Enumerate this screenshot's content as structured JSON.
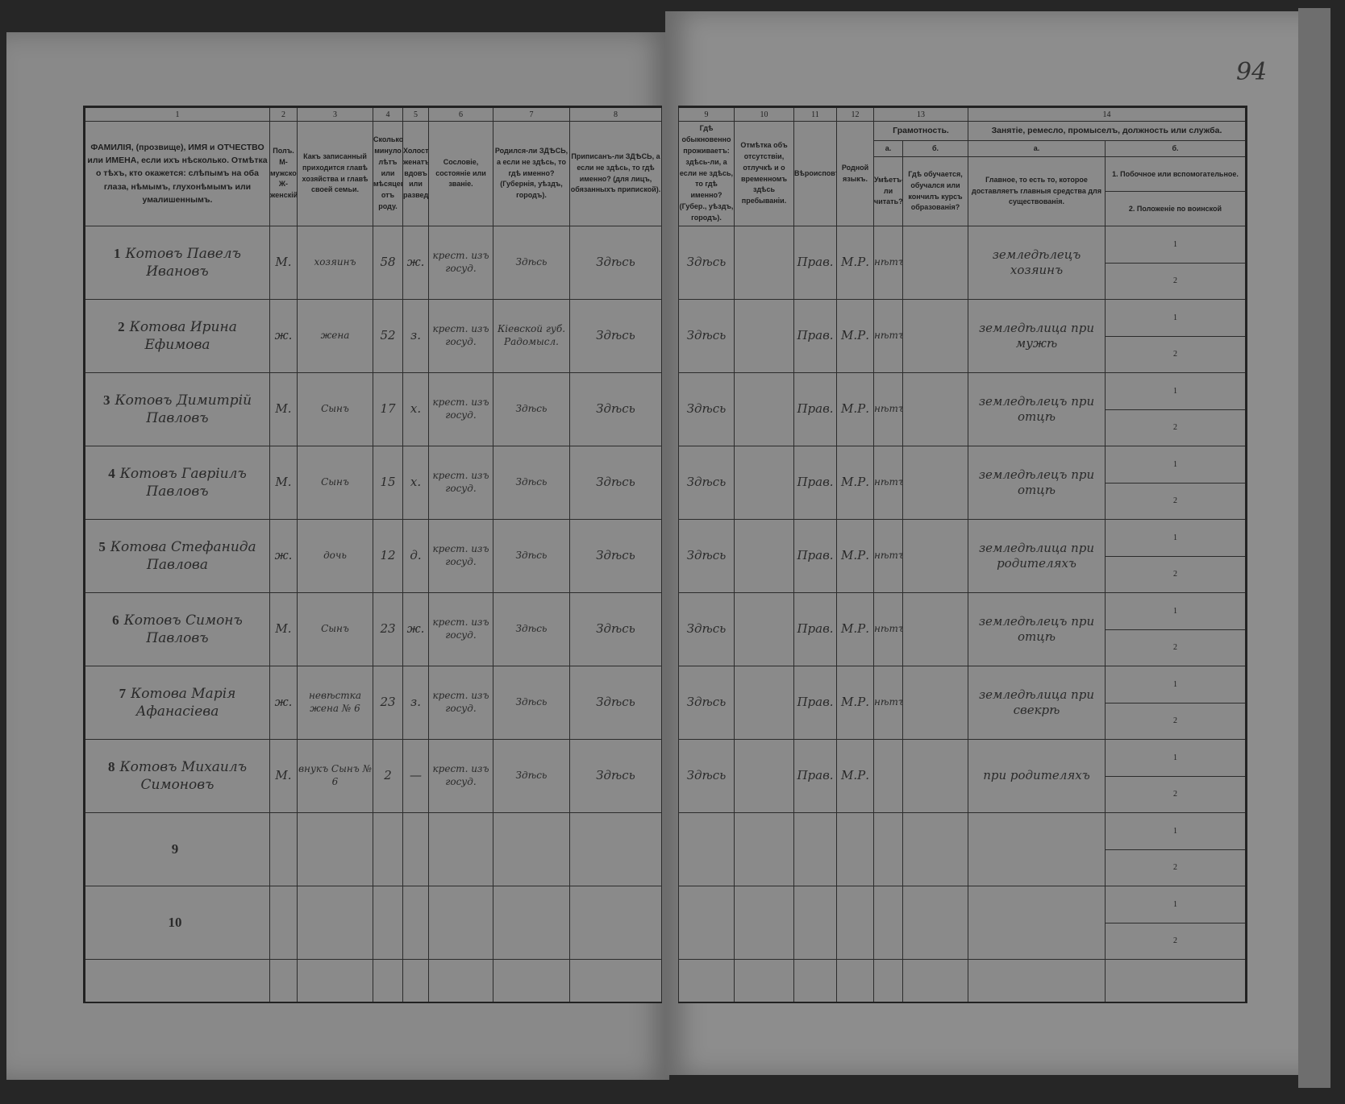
{
  "page_number": "94",
  "columns_left": [
    {
      "num": "1",
      "header": "ФАМИЛІЯ, (прозвище), ИМЯ и ОТЧЕСТВО или ИМЕНА, если ихъ нѣсколько. Отмѣтка о тѣхъ, кто окажется: слѣпымъ на оба глаза, нѣмымъ, глухонѣмымъ или умалишеннымъ."
    },
    {
      "num": "2",
      "header": "Полъ. М-мужской. Ж-женскій."
    },
    {
      "num": "3",
      "header": "Какъ записанный приходится главѣ хозяйства и главѣ своей семьи."
    },
    {
      "num": "4",
      "header": "Сколько минуло лѣтъ или мѣсяцевъ отъ роду."
    },
    {
      "num": "5",
      "header": "Холостъ, женатъ, вдовъ или разведенъ."
    },
    {
      "num": "6",
      "header": "Сословіе, состояніе или званіе."
    },
    {
      "num": "7",
      "header": "Родился-ли ЗДѢСЬ, а если не здѣсь, то гдѣ именно? (Губернія, уѣздъ, городъ)."
    },
    {
      "num": "8",
      "header": "Приписанъ-ли ЗДѢСЬ, а если не здѣсь, то гдѣ именно? (для лицъ, обязанныхъ припиской)."
    }
  ],
  "columns_right": {
    "c9": {
      "num": "9",
      "header": "Гдѣ обыкновенно проживаетъ: здѣсь-ли, а если не здѣсь, то гдѣ именно? (Губер., уѣздъ, городъ)."
    },
    "c10": {
      "num": "10",
      "header": "Отмѣтка объ отсутствіи, отлучкѣ и о временномъ здѣсь пребываніи."
    },
    "c11": {
      "num": "11",
      "header": "Вѣроисповѣданіе."
    },
    "c12": {
      "num": "12",
      "header": "Родной языкъ."
    },
    "c13": {
      "num": "13",
      "group": "Грамотность.",
      "a_label": "а.",
      "a_header": "Умѣетъ-ли читать?",
      "b_label": "б.",
      "b_header": "Гдѣ обучается, обучался или кончилъ курсъ образованія?"
    },
    "c14": {
      "num": "14",
      "group": "Занятіе, ремесло, промыселъ, должность или служба.",
      "a_label": "а.",
      "a_header": "Главное, то есть то, которое доставляетъ главныя средства для существованія.",
      "b_label": "б.",
      "b_header_1": "1. Побочное или вспомогательное.",
      "b_header_2": "2. Положеніе по воинской повинности."
    }
  },
  "subrow_labels": [
    "1",
    "2"
  ],
  "rows": [
    {
      "n": "1",
      "name": "Котовъ Павелъ Ивановъ",
      "sex": "М.",
      "relation": "хозяинъ",
      "age": "58",
      "marital": "ж.",
      "estate": "крест. изъ госуд.",
      "born": "Здѣсь",
      "registered": "Здѣсь",
      "residence": "Здѣсь",
      "absence": "",
      "religion": "Прав.",
      "language": "М.Р.",
      "literate": "нѣтъ",
      "school": "",
      "occupation": "земледѣлецъ хозяинъ"
    },
    {
      "n": "2",
      "name": "Котова Ирина Ефимова",
      "sex": "ж.",
      "relation": "жена",
      "age": "52",
      "marital": "з.",
      "estate": "крест. изъ госуд.",
      "born": "Кіевской губ. Радомысл.",
      "registered": "Здѣсь",
      "residence": "Здѣсь",
      "absence": "",
      "religion": "Прав.",
      "language": "М.Р.",
      "literate": "нѣтъ",
      "school": "",
      "occupation": "земледѣлица при мужѣ"
    },
    {
      "n": "3",
      "name": "Котовъ Димитрій Павловъ",
      "sex": "М.",
      "relation": "Сынъ",
      "age": "17",
      "marital": "х.",
      "estate": "крест. изъ госуд.",
      "born": "Здѣсь",
      "registered": "Здѣсь",
      "residence": "Здѣсь",
      "absence": "",
      "religion": "Прав.",
      "language": "М.Р.",
      "literate": "нѣтъ",
      "school": "",
      "occupation": "земледѣлецъ при отцѣ"
    },
    {
      "n": "4",
      "name": "Котовъ Гавріилъ Павловъ",
      "sex": "М.",
      "relation": "Сынъ",
      "age": "15",
      "marital": "х.",
      "estate": "крест. изъ госуд.",
      "born": "Здѣсь",
      "registered": "Здѣсь",
      "residence": "Здѣсь",
      "absence": "",
      "religion": "Прав.",
      "language": "М.Р.",
      "literate": "нѣтъ",
      "school": "",
      "occupation": "земледѣлецъ при отцѣ"
    },
    {
      "n": "5",
      "name": "Котова Стефанида Павлова",
      "sex": "ж.",
      "relation": "дочь",
      "age": "12",
      "marital": "д.",
      "estate": "крест. изъ госуд.",
      "born": "Здѣсь",
      "registered": "Здѣсь",
      "residence": "Здѣсь",
      "absence": "",
      "religion": "Прав.",
      "language": "М.Р.",
      "literate": "нѣтъ",
      "school": "",
      "occupation": "земледѣлица при родителяхъ"
    },
    {
      "n": "6",
      "name": "Котовъ Симонъ Павловъ",
      "sex": "М.",
      "relation": "Сынъ",
      "age": "23",
      "marital": "ж.",
      "estate": "крест. изъ госуд.",
      "born": "Здѣсь",
      "registered": "Здѣсь",
      "residence": "Здѣсь",
      "absence": "",
      "religion": "Прав.",
      "language": "М.Р.",
      "literate": "нѣтъ",
      "school": "",
      "occupation": "земледѣлецъ при отцѣ"
    },
    {
      "n": "7",
      "name": "Котова Марія Афанасіева",
      "sex": "ж.",
      "relation": "невѣстка жена № 6",
      "age": "23",
      "marital": "з.",
      "estate": "крест. изъ госуд.",
      "born": "Здѣсь",
      "registered": "Здѣсь",
      "residence": "Здѣсь",
      "absence": "",
      "religion": "Прав.",
      "language": "М.Р.",
      "literate": "нѣтъ",
      "school": "",
      "occupation": "земледѣлица при свекрѣ"
    },
    {
      "n": "8",
      "name": "Котовъ Михаилъ Симоновъ",
      "sex": "М.",
      "relation": "внукъ Сынъ № 6",
      "age": "2",
      "marital": "—",
      "estate": "крест. изъ госуд.",
      "born": "Здѣсь",
      "registered": "Здѣсь",
      "residence": "Здѣсь",
      "absence": "",
      "religion": "Прав.",
      "language": "М.Р.",
      "literate": "",
      "school": "",
      "occupation": "при родителяхъ"
    },
    {
      "n": "9",
      "name": "",
      "sex": "",
      "relation": "",
      "age": "",
      "marital": "",
      "estate": "",
      "born": "",
      "registered": "",
      "residence": "",
      "absence": "",
      "religion": "",
      "language": "",
      "literate": "",
      "school": "",
      "occupation": ""
    },
    {
      "n": "10",
      "name": "",
      "sex": "",
      "relation": "",
      "age": "",
      "marital": "",
      "estate": "",
      "born": "",
      "registered": "",
      "residence": "",
      "absence": "",
      "religion": "",
      "language": "",
      "literate": "",
      "school": "",
      "occupation": ""
    }
  ]
}
